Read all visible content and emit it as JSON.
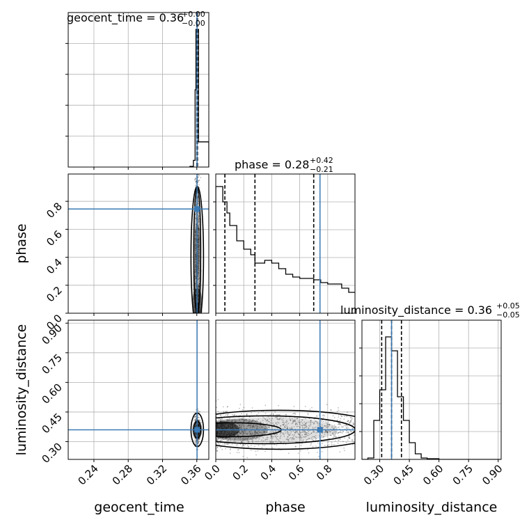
{
  "colors": {
    "truth": "#3b7ab5",
    "hist": "#000000",
    "grid": "#b0b0b0",
    "density": "#000000"
  },
  "chart_data": {
    "type": "corner",
    "parameters": [
      "geocent_time",
      "phase",
      "luminosity_distance"
    ],
    "axis_labels": {
      "x": [
        "geocent_time",
        "phase",
        "luminosity_distance"
      ],
      "y": [
        "phase",
        "luminosity_distance"
      ]
    },
    "titles": [
      {
        "param": "geocent_time",
        "text": "geocent_time = 0.36",
        "plus": "+0.00",
        "minus": "−0.00"
      },
      {
        "param": "phase",
        "text": "phase = 0.28",
        "plus": "+0.42",
        "minus": "−0.21"
      },
      {
        "param": "luminosity_distance",
        "text": "luminosity_distance = 0.36",
        "plus": "+0.05",
        "minus": "−0.05"
      }
    ],
    "ranges": {
      "geocent_time": [
        0.21,
        0.374
      ],
      "phase": [
        0.0,
        0.995
      ],
      "luminosity_distance": [
        0.21,
        0.915
      ]
    },
    "ticks": {
      "geocent_time": [
        0.24,
        0.28,
        0.32,
        0.36
      ],
      "phase": [
        0.0,
        0.2,
        0.4,
        0.6,
        0.8
      ],
      "luminosity_distance": [
        0.3,
        0.45,
        0.6,
        0.75,
        0.9
      ]
    },
    "tick_labels": {
      "geocent_time": [
        "0.24",
        "0.28",
        "0.32",
        "0.36"
      ],
      "phase": [
        "0.0",
        "0.2",
        "0.4",
        "0.6",
        "0.8"
      ],
      "luminosity_distance": [
        "0.30",
        "0.45",
        "0.60",
        "0.75",
        "0.90"
      ]
    },
    "truths": {
      "geocent_time": 0.3603,
      "phase": 0.745,
      "luminosity_distance": 0.36
    },
    "quantiles": {
      "geocent_time": [
        0.36,
        0.3604,
        0.3608
      ],
      "phase": [
        0.065,
        0.28,
        0.7
      ],
      "luminosity_distance": [
        0.31,
        0.36,
        0.41
      ]
    },
    "histograms": {
      "geocent_time": {
        "edges": [
          0.352,
          0.356,
          0.358,
          0.359,
          0.36,
          0.361,
          0.362,
          0.363,
          0.374
        ],
        "counts": [
          0.02,
          0.2,
          2.3,
          4.1,
          4.1,
          4.1,
          0.75,
          0.75
        ]
      },
      "phase": {
        "edges": [
          0.0,
          0.05,
          0.08,
          0.1,
          0.15,
          0.2,
          0.25,
          0.28,
          0.3,
          0.35,
          0.4,
          0.45,
          0.5,
          0.55,
          0.6,
          0.65,
          0.7,
          0.75,
          0.8,
          0.85,
          0.9,
          0.95,
          1.0
        ],
        "counts": [
          0.91,
          0.8,
          0.72,
          0.63,
          0.52,
          0.46,
          0.42,
          0.36,
          0.36,
          0.38,
          0.36,
          0.32,
          0.28,
          0.26,
          0.25,
          0.25,
          0.24,
          0.22,
          0.21,
          0.21,
          0.18,
          0.15
        ]
      },
      "luminosity_distance": {
        "edges": [
          0.21,
          0.24,
          0.27,
          0.3,
          0.33,
          0.36,
          0.39,
          0.42,
          0.45,
          0.48,
          0.51,
          0.54,
          0.6,
          0.915
        ],
        "counts": [
          0.0,
          0.01,
          0.28,
          0.5,
          0.88,
          0.78,
          0.45,
          0.28,
          0.12,
          0.04,
          0.01,
          0.005,
          0.0
        ]
      }
    },
    "density_panels": [
      {
        "x": "geocent_time",
        "y": "phase"
      },
      {
        "x": "geocent_time",
        "y": "luminosity_distance"
      },
      {
        "x": "phase",
        "y": "luminosity_distance"
      }
    ],
    "grid": true
  }
}
